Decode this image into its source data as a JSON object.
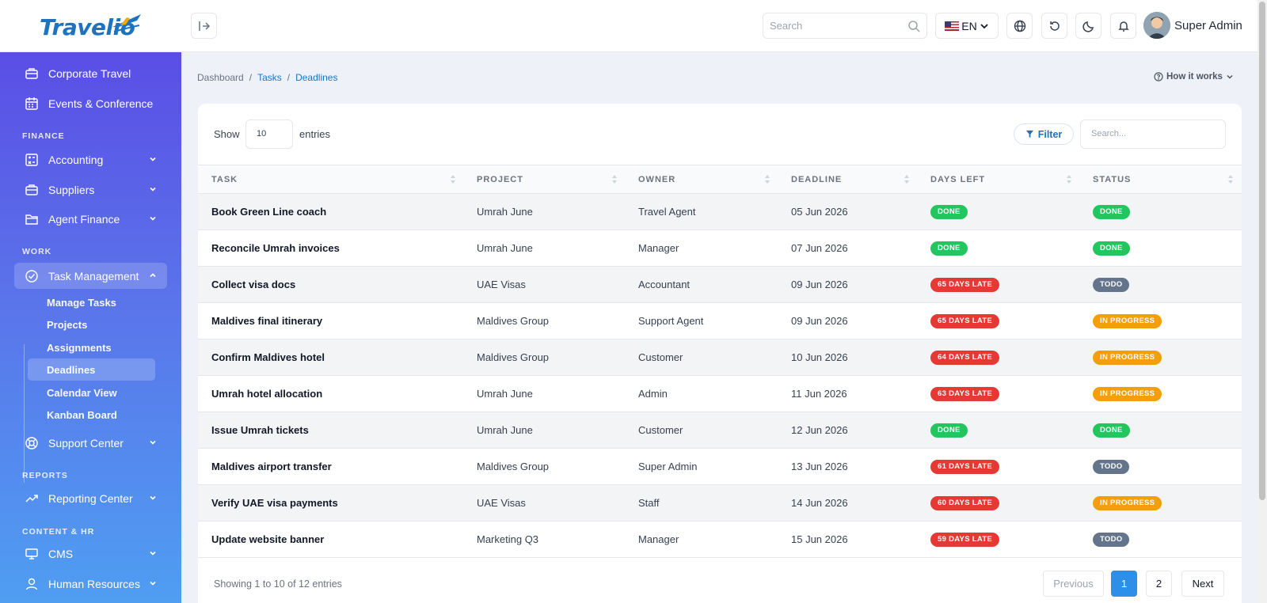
{
  "brand": {
    "name": "Travelio"
  },
  "topbar": {
    "search_placeholder": "Search",
    "language": "EN",
    "user_name": "Super Admin"
  },
  "sidebar": {
    "items_top": [
      {
        "label": "Corporate Travel",
        "icon": "briefcase-icon"
      },
      {
        "label": "Events & Conference",
        "icon": "calendar-icon"
      }
    ],
    "sections": {
      "finance": "FINANCE",
      "work": "WORK",
      "reports": "REPORTS",
      "content_hr": "CONTENT & HR"
    },
    "finance_items": [
      {
        "label": "Accounting",
        "icon": "calculator-icon"
      },
      {
        "label": "Suppliers",
        "icon": "briefcase-icon"
      },
      {
        "label": "Agent Finance",
        "icon": "folder-icon"
      }
    ],
    "task_management": {
      "label": "Task Management",
      "icon": "check-circle-icon"
    },
    "task_sub": [
      "Manage Tasks",
      "Projects",
      "Assignments",
      "Deadlines",
      "Calendar View",
      "Kanban Board"
    ],
    "support_center": "Support Center",
    "reporting_center": "Reporting Center",
    "cms": "CMS",
    "human_resources": "Human Resources"
  },
  "breadcrumb": {
    "root": "Dashboard",
    "parent": "Tasks",
    "current": "Deadlines"
  },
  "how_it_works": "How it works",
  "table_controls": {
    "show_label": "Show",
    "show_value": "10",
    "entries_label": "entries",
    "filter_label": "Filter",
    "search_placeholder": "Search..."
  },
  "columns": [
    "TASK",
    "PROJECT",
    "OWNER",
    "DEADLINE",
    "DAYS LEFT",
    "STATUS"
  ],
  "rows": [
    {
      "task": "Book Green Line coach",
      "project": "Umrah June",
      "owner": "Travel Agent",
      "deadline": "05 Jun 2026",
      "days_left": "DONE",
      "status": "DONE"
    },
    {
      "task": "Reconcile Umrah invoices",
      "project": "Umrah June",
      "owner": "Manager",
      "deadline": "07 Jun 2026",
      "days_left": "DONE",
      "status": "DONE"
    },
    {
      "task": "Collect visa docs",
      "project": "UAE Visas",
      "owner": "Accountant",
      "deadline": "09 Jun 2026",
      "days_left": "65 DAYS LATE",
      "status": "TODO"
    },
    {
      "task": "Maldives final itinerary",
      "project": "Maldives Group",
      "owner": "Support Agent",
      "deadline": "09 Jun 2026",
      "days_left": "65 DAYS LATE",
      "status": "IN PROGRESS"
    },
    {
      "task": "Confirm Maldives hotel",
      "project": "Maldives Group",
      "owner": "Customer",
      "deadline": "10 Jun 2026",
      "days_left": "64 DAYS LATE",
      "status": "IN PROGRESS"
    },
    {
      "task": "Umrah hotel allocation",
      "project": "Umrah June",
      "owner": "Admin",
      "deadline": "11 Jun 2026",
      "days_left": "63 DAYS LATE",
      "status": "IN PROGRESS"
    },
    {
      "task": "Issue Umrah tickets",
      "project": "Umrah June",
      "owner": "Customer",
      "deadline": "12 Jun 2026",
      "days_left": "DONE",
      "status": "DONE"
    },
    {
      "task": "Maldives airport transfer",
      "project": "Maldives Group",
      "owner": "Super Admin",
      "deadline": "13 Jun 2026",
      "days_left": "61 DAYS LATE",
      "status": "TODO"
    },
    {
      "task": "Verify UAE visa payments",
      "project": "UAE Visas",
      "owner": "Staff",
      "deadline": "14 Jun 2026",
      "days_left": "60 DAYS LATE",
      "status": "IN PROGRESS"
    },
    {
      "task": "Update website banner",
      "project": "Marketing Q3",
      "owner": "Manager",
      "deadline": "15 Jun 2026",
      "days_left": "59 DAYS LATE",
      "status": "TODO"
    }
  ],
  "pagination": {
    "info": "Showing 1 to 10 of 12 entries",
    "previous": "Previous",
    "pages": [
      "1",
      "2"
    ],
    "next": "Next"
  },
  "colors": {
    "done": "#22c55e",
    "late": "#e53935",
    "todo": "#64748b",
    "in_progress": "#f59e0b",
    "accent": "#1e73be"
  }
}
